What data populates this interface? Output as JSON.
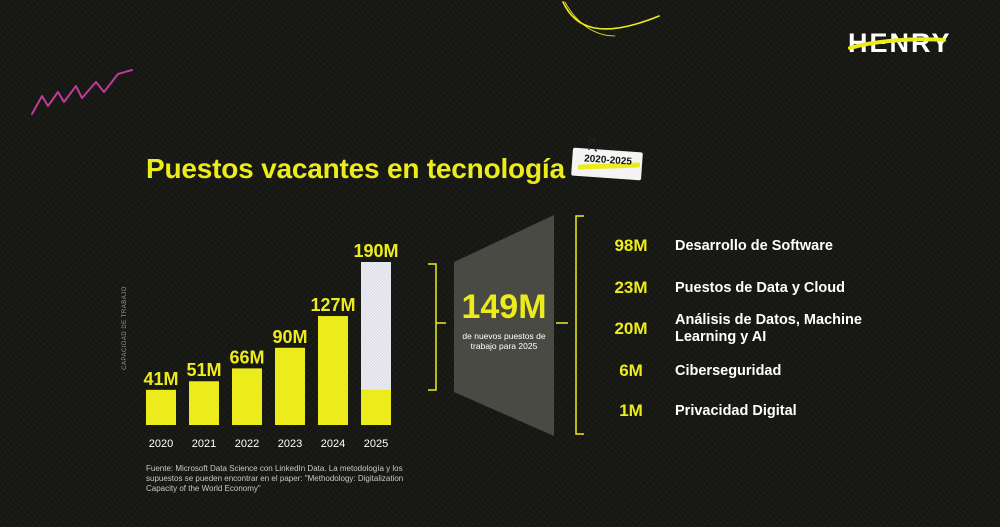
{
  "brand": {
    "logo_text": "HENRY",
    "accent_color": "#ECEC1C",
    "background_color": "#161612",
    "bar_outline_color": "#e8e8f0"
  },
  "title": "Puestos vacantes en tecnología",
  "date_tag": "2020-2025",
  "chart_data": {
    "type": "bar",
    "title": "Puestos vacantes en tecnología",
    "ylabel": "CAPACIDAD DE TRABAJO",
    "xlabel": "",
    "categories": [
      "2020",
      "2021",
      "2022",
      "2023",
      "2024",
      "2025"
    ],
    "values": [
      41,
      51,
      66,
      90,
      127,
      190
    ],
    "value_labels": [
      "41M",
      "51M",
      "66M",
      "90M",
      "127M",
      "190M"
    ],
    "unit": "M",
    "ylim": [
      0,
      190
    ],
    "highlight": {
      "category": "2025",
      "filled_base": 41,
      "new_jobs": 149,
      "note": "Yellow base with white hatched top segment"
    },
    "grid": false,
    "legend": "none"
  },
  "total": {
    "value": "149M",
    "caption": "de nuevos puestos de trabajo para 2025"
  },
  "breakdown": [
    {
      "value": "98M",
      "label": "Desarrollo de Software"
    },
    {
      "value": "23M",
      "label": "Puestos de Data y Cloud"
    },
    {
      "value": "20M",
      "label": "Análisis de Datos, Machine Learning y AI"
    },
    {
      "value": "6M",
      "label": "Ciberseguridad"
    },
    {
      "value": "1M",
      "label": "Privacidad Digital"
    }
  ],
  "source": "Fuente: Microsoft Data Science con LinkedIn Data. La metodología y los supuestos se pueden encontrar en el paper: \"Methodology: Digitalization Capacity of the World Economy\""
}
